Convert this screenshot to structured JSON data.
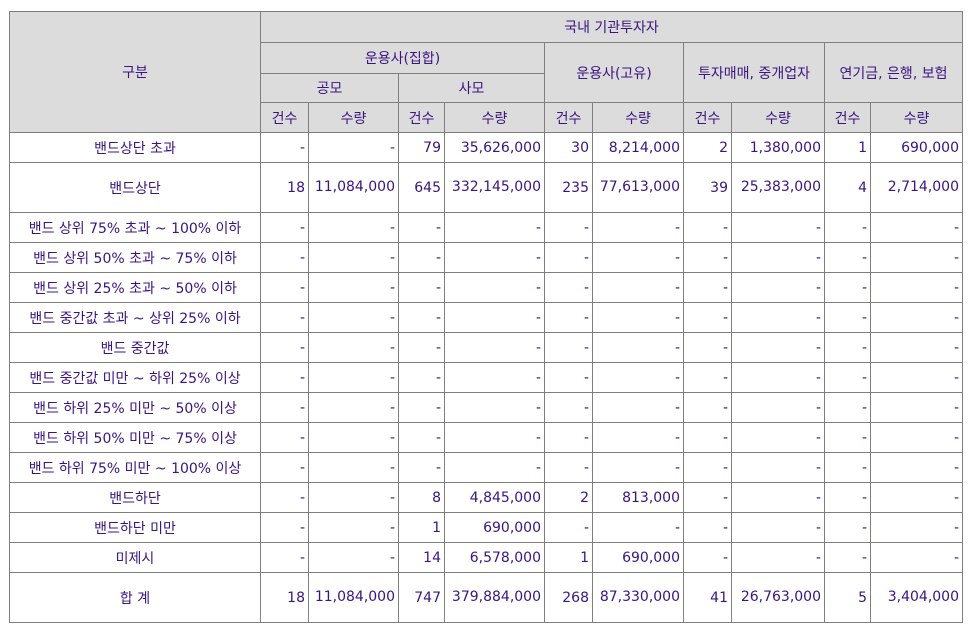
{
  "header": {
    "category": "구분",
    "domestic": "국내 기관투자자",
    "collective": "운용사(집합)",
    "public": "공모",
    "private": "사모",
    "proprietary": "운용사(고유)",
    "broker": "투자매매, 중개업자",
    "pension": "연기금, 은행, 보험",
    "count": "건수",
    "qty": "수량"
  },
  "rows": [
    {
      "label": "밴드상단 초과",
      "tall": false,
      "v": [
        "-",
        "-",
        "79",
        "35,626,000",
        "30",
        "8,214,000",
        "2",
        "1,380,000",
        "1",
        "690,000"
      ]
    },
    {
      "label": "밴드상단",
      "tall": true,
      "v": [
        "18",
        "11,084,000",
        "645",
        "332,145,000",
        "235",
        "77,613,000",
        "39",
        "25,383,000",
        "4",
        "2,714,000"
      ]
    },
    {
      "label": "밴드 상위 75% 초과 ~ 100% 이하",
      "tall": false,
      "v": [
        "-",
        "-",
        "-",
        "-",
        "-",
        "-",
        "-",
        "-",
        "-",
        "-"
      ]
    },
    {
      "label": "밴드 상위 50% 초과 ~ 75% 이하",
      "tall": false,
      "v": [
        "-",
        "-",
        "-",
        "-",
        "-",
        "-",
        "-",
        "-",
        "-",
        "-"
      ]
    },
    {
      "label": "밴드 상위 25% 초과 ~ 50% 이하",
      "tall": false,
      "v": [
        "-",
        "-",
        "-",
        "-",
        "-",
        "-",
        "-",
        "-",
        "-",
        "-"
      ]
    },
    {
      "label": "밴드 중간값 초과 ~ 상위 25% 이하",
      "tall": false,
      "v": [
        "-",
        "-",
        "-",
        "-",
        "-",
        "-",
        "-",
        "-",
        "-",
        "-"
      ]
    },
    {
      "label": "밴드 중간값",
      "tall": false,
      "v": [
        "-",
        "-",
        "-",
        "-",
        "-",
        "-",
        "-",
        "-",
        "-",
        "-"
      ]
    },
    {
      "label": "밴드 중간값 미만 ~ 하위 25% 이상",
      "tall": false,
      "v": [
        "-",
        "-",
        "-",
        "-",
        "-",
        "-",
        "-",
        "-",
        "-",
        "-"
      ]
    },
    {
      "label": "밴드 하위 25% 미만 ~ 50% 이상",
      "tall": false,
      "v": [
        "-",
        "-",
        "-",
        "-",
        "-",
        "-",
        "-",
        "-",
        "-",
        "-"
      ]
    },
    {
      "label": "밴드 하위 50% 미만 ~ 75% 이상",
      "tall": false,
      "v": [
        "-",
        "-",
        "-",
        "-",
        "-",
        "-",
        "-",
        "-",
        "-",
        "-"
      ]
    },
    {
      "label": "밴드 하위 75% 미만 ~ 100% 이상",
      "tall": false,
      "v": [
        "-",
        "-",
        "-",
        "-",
        "-",
        "-",
        "-",
        "-",
        "-",
        "-"
      ]
    },
    {
      "label": "밴드하단",
      "tall": false,
      "v": [
        "-",
        "-",
        "8",
        "4,845,000",
        "2",
        "813,000",
        "-",
        "-",
        "-",
        "-"
      ]
    },
    {
      "label": "밴드하단 미만",
      "tall": false,
      "v": [
        "-",
        "-",
        "1",
        "690,000",
        "-",
        "-",
        "-",
        "-",
        "-",
        "-"
      ]
    },
    {
      "label": "미제시",
      "tall": false,
      "v": [
        "-",
        "-",
        "14",
        "6,578,000",
        "1",
        "690,000",
        "-",
        "-",
        "-",
        "-"
      ]
    },
    {
      "label": "합 계",
      "tall": true,
      "v": [
        "18",
        "11,084,000",
        "747",
        "379,884,000",
        "268",
        "87,330,000",
        "41",
        "26,763,000",
        "5",
        "3,404,000"
      ]
    }
  ]
}
